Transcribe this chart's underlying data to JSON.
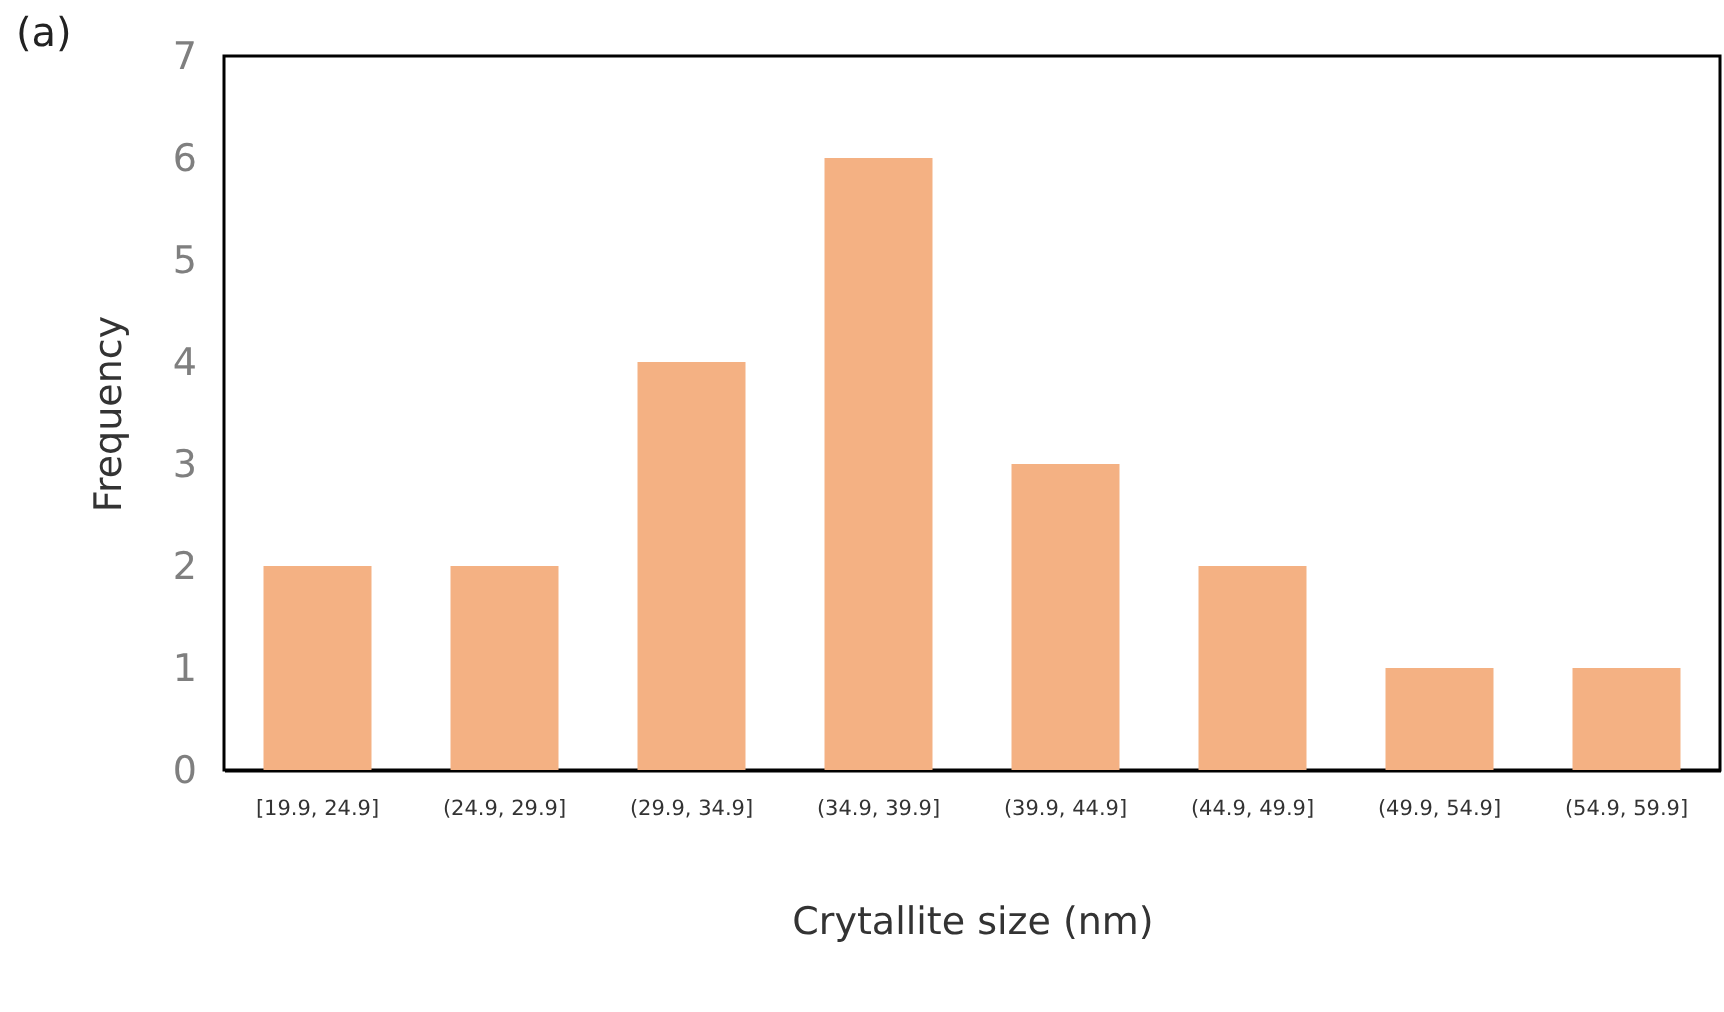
{
  "chart_data": {
    "type": "bar",
    "xlabel": "Crytallite size  (nm)",
    "ylabel": "Frequency",
    "annotations": [
      "(a)"
    ],
    "categories": [
      "[19.9, 24.9]",
      "(24.9, 29.9]",
      "(29.9, 34.9]",
      "(34.9, 39.9]",
      "(39.9, 44.9]",
      "(44.9, 49.9]",
      "(49.9, 54.9]",
      "(54.9, 59.9]"
    ],
    "values": [
      2,
      2,
      4,
      6,
      3,
      2,
      1,
      1
    ],
    "color": "#f4b183",
    "ylim": [
      0,
      7
    ],
    "yticks": [
      0,
      1,
      2,
      3,
      4,
      5,
      6,
      7
    ],
    "grid": false
  }
}
